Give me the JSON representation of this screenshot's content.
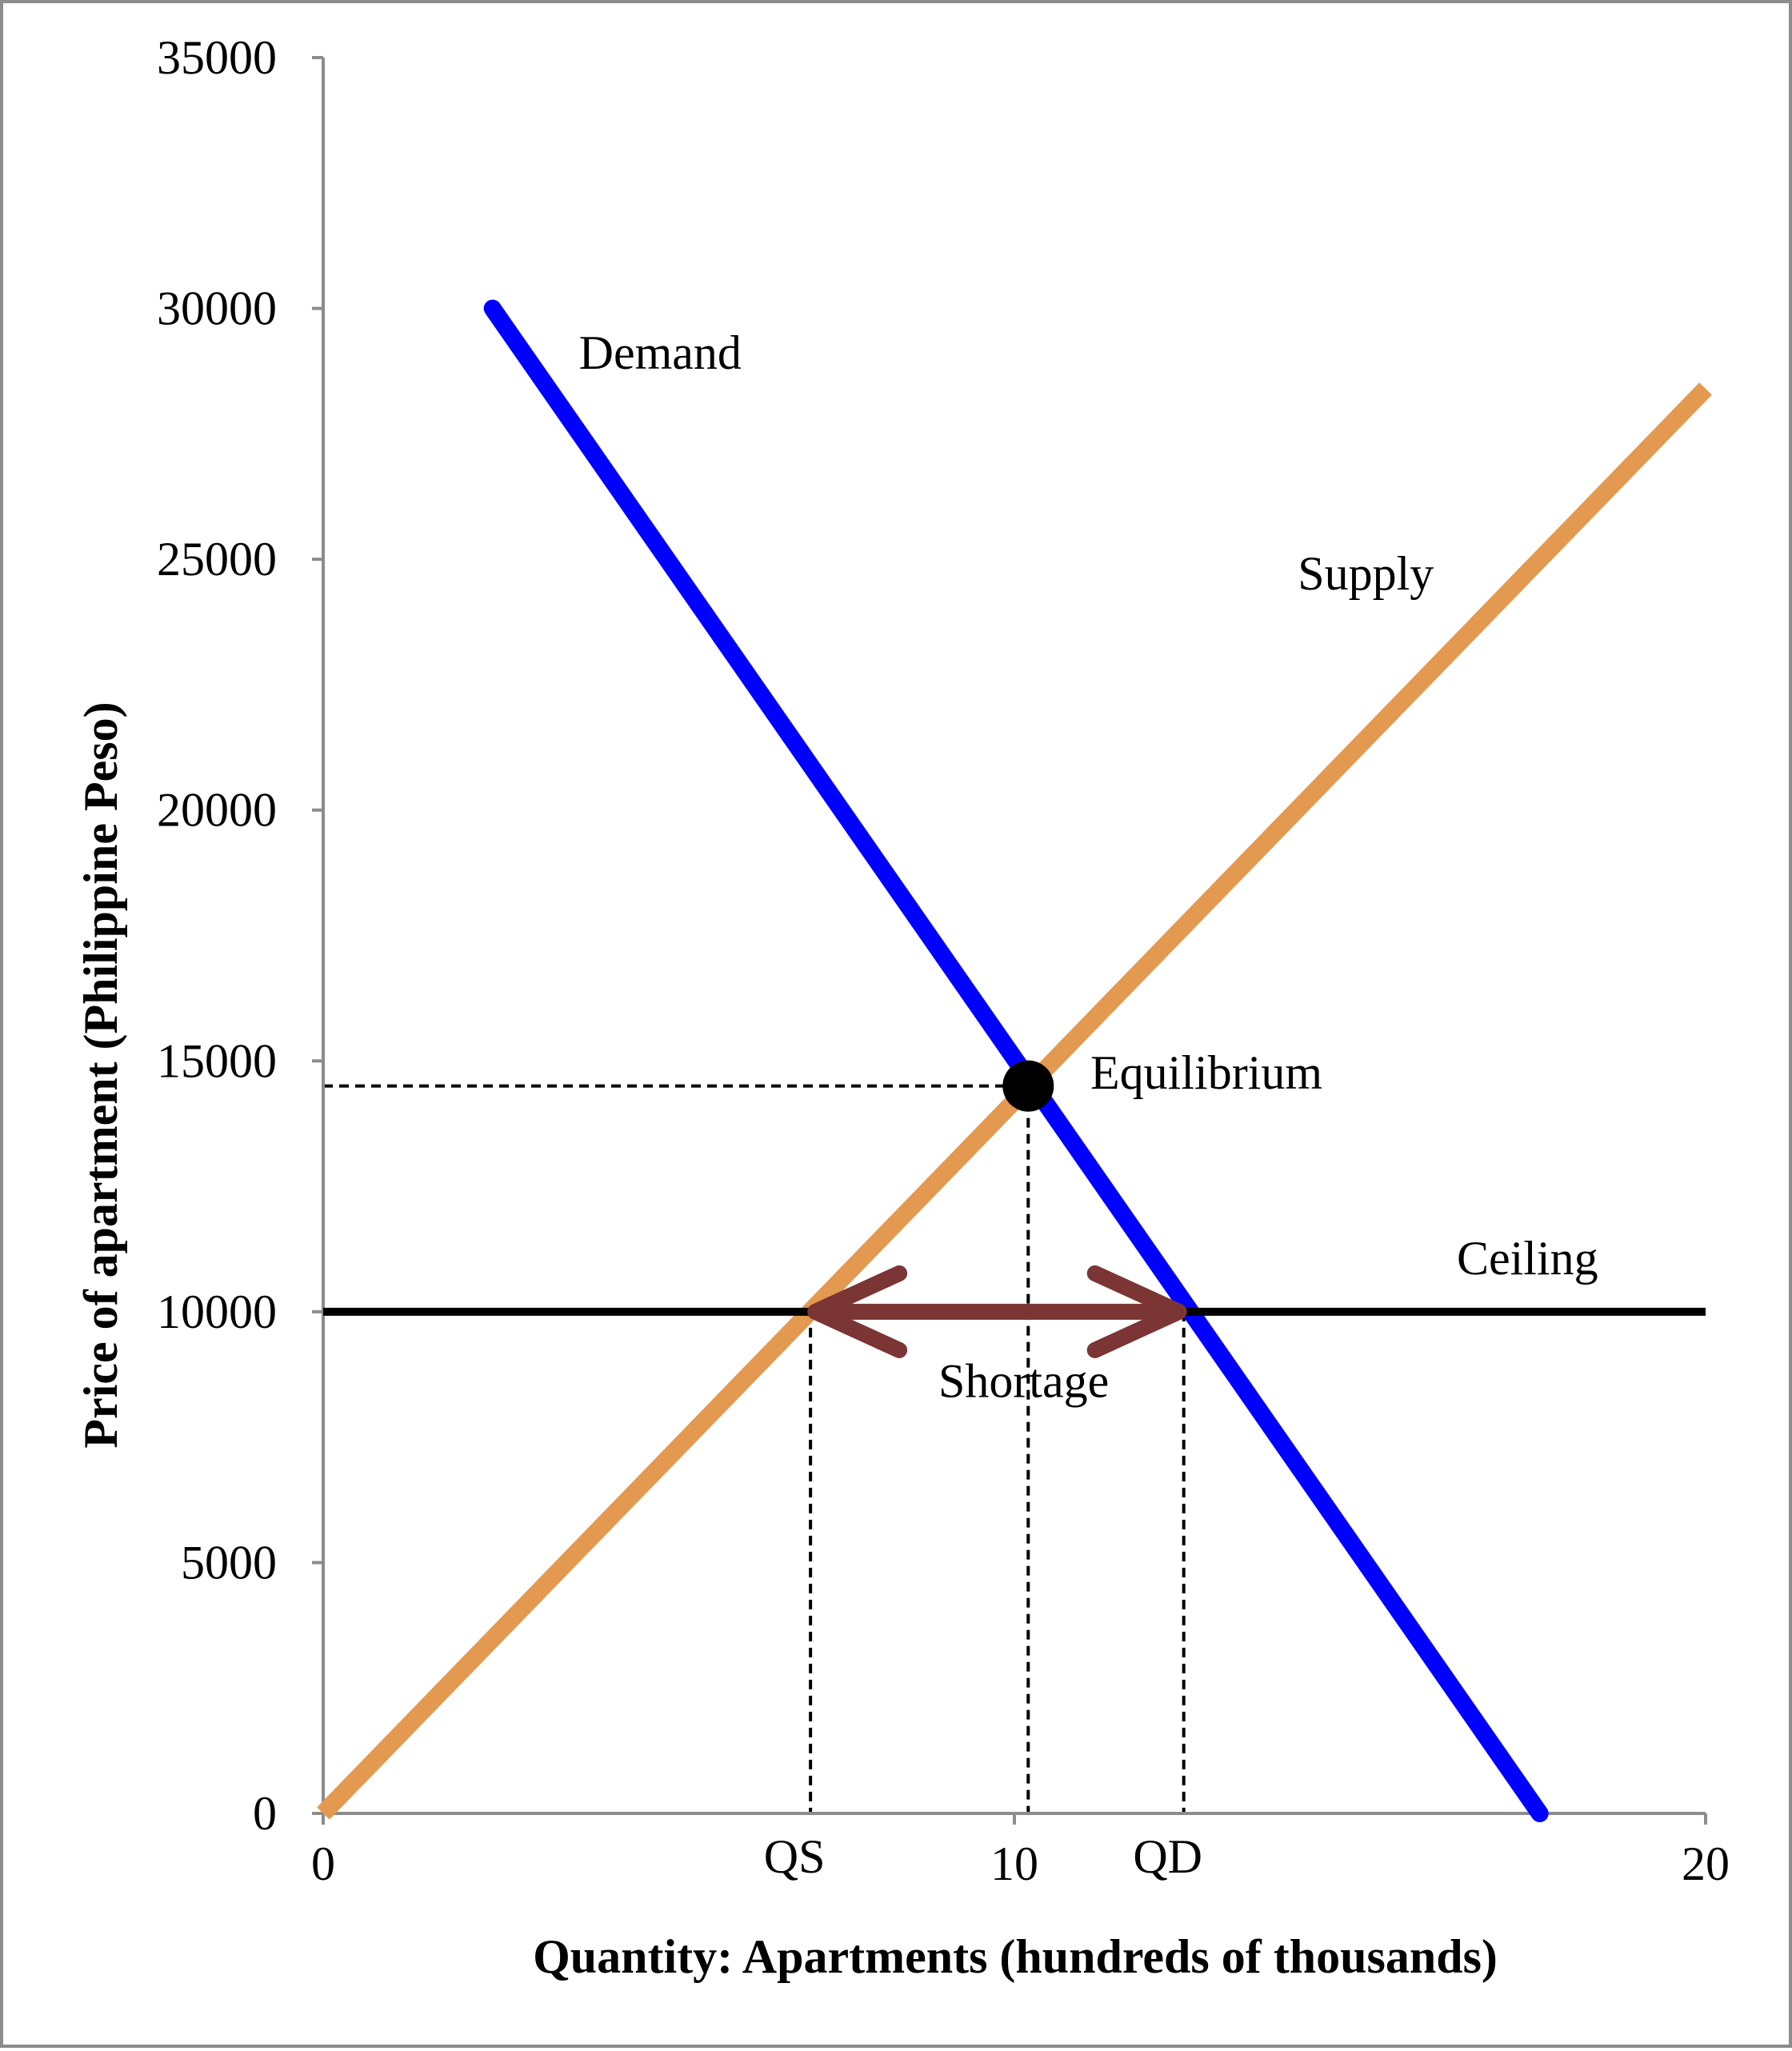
{
  "chart_data": {
    "type": "line",
    "title": "",
    "xlabel": "Quantity: Apartments (hundreds of thousands)",
    "ylabel": "Price of apartment (Philippine Peso)",
    "xlim": [
      0,
      20
    ],
    "ylim": [
      0,
      35000
    ],
    "x_ticks": [
      {
        "value": 0,
        "label": "0"
      },
      {
        "value": 10,
        "label": "10"
      },
      {
        "value": 20,
        "label": "20"
      }
    ],
    "x_extra_labels": [
      {
        "value": 7.05,
        "label": "QS"
      },
      {
        "value": 12.45,
        "label": "QD"
      }
    ],
    "y_ticks": [
      {
        "value": 0,
        "label": "0"
      },
      {
        "value": 5000,
        "label": "5000"
      },
      {
        "value": 10000,
        "label": "10000"
      },
      {
        "value": 15000,
        "label": "15000"
      },
      {
        "value": 20000,
        "label": "20000"
      },
      {
        "value": 25000,
        "label": "25000"
      },
      {
        "value": 30000,
        "label": "30000"
      },
      {
        "value": 35000,
        "label": "35000"
      }
    ],
    "grid": false,
    "series": [
      {
        "name": "Demand",
        "color": "#0000ff",
        "points": [
          [
            2.45,
            30000
          ],
          [
            17.6,
            0
          ]
        ]
      },
      {
        "name": "Supply",
        "color": "#e3994f",
        "points": [
          [
            0,
            0
          ],
          [
            20,
            28400
          ]
        ]
      },
      {
        "name": "Ceiling",
        "color": "#000000",
        "points": [
          [
            0,
            10000
          ],
          [
            20,
            10000
          ]
        ]
      }
    ],
    "equilibrium": {
      "label": "Equilibrium",
      "x": 10.2,
      "y": 14500
    },
    "guides": [
      {
        "from": [
          0,
          14500
        ],
        "to": [
          10.2,
          14500
        ]
      },
      {
        "from": [
          10.2,
          14500
        ],
        "to": [
          10.2,
          0
        ]
      },
      {
        "from": [
          7.05,
          10000
        ],
        "to": [
          7.05,
          0
        ]
      },
      {
        "from": [
          12.45,
          10000
        ],
        "to": [
          12.45,
          0
        ]
      }
    ],
    "shortage": {
      "label": "Shortage",
      "x_from": 7.05,
      "x_to": 12.45,
      "y": 10000,
      "color": "#7b3535"
    },
    "annotations": [
      {
        "text": "Demand",
        "x": 3.7,
        "y": 28800
      },
      {
        "text": "Supply",
        "x": 14.1,
        "y": 24400
      },
      {
        "text": "Equilibrium",
        "x": 11.1,
        "y": 14450
      },
      {
        "text": "Ceiling",
        "x": 16.4,
        "y": 10750
      },
      {
        "text": "Shortage",
        "x": 8.9,
        "y": 8300
      }
    ]
  }
}
